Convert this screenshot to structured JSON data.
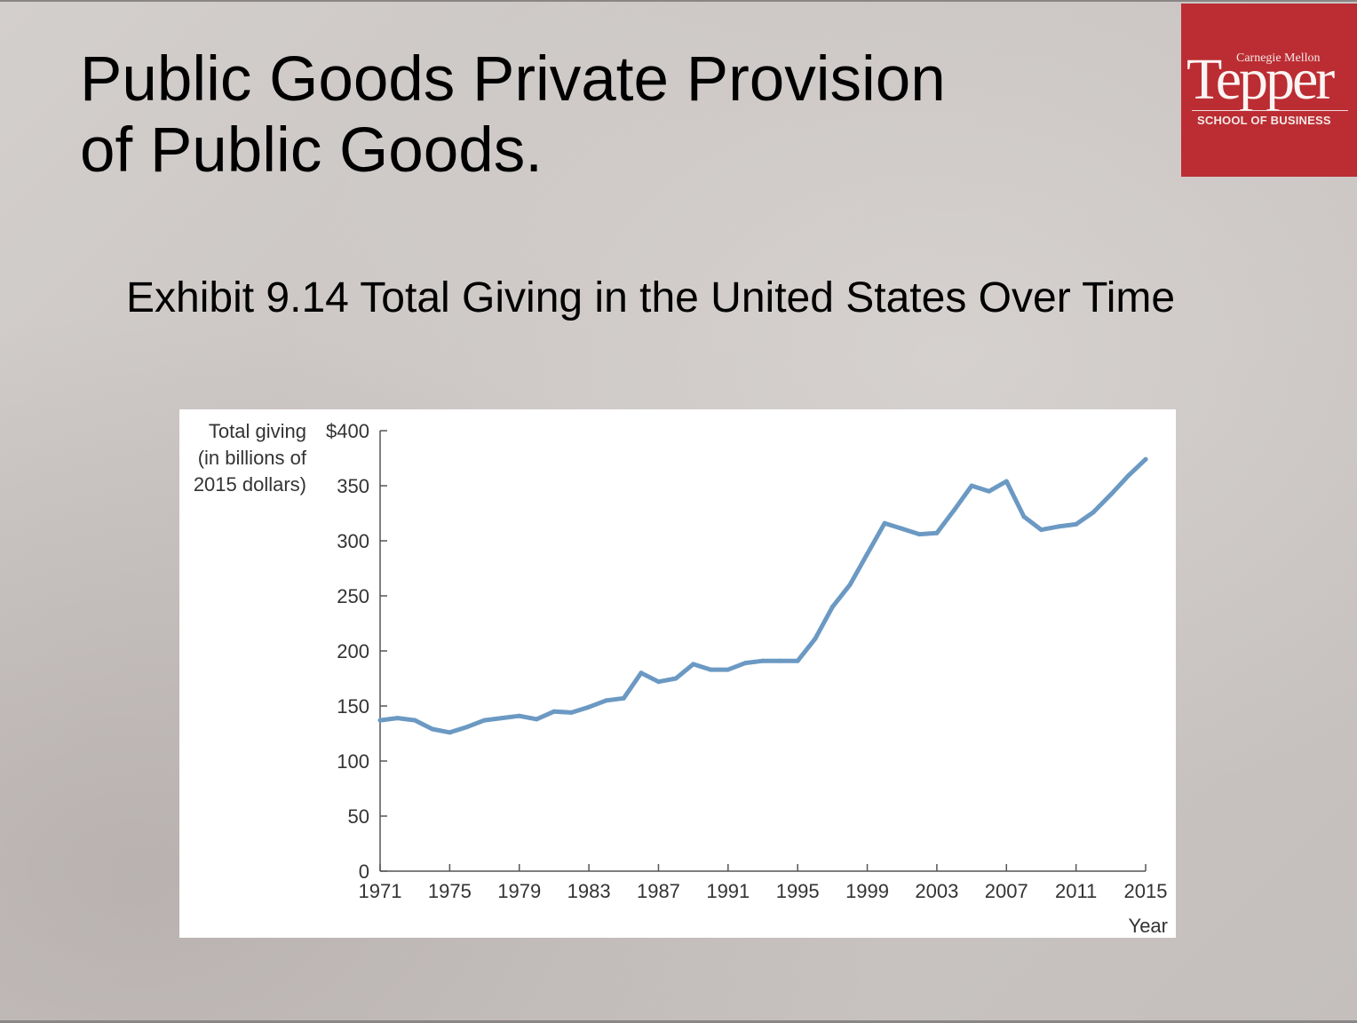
{
  "slide": {
    "title_line1": "Public Goods Private Provision",
    "title_line2": "of Public Goods.",
    "exhibit_title": "Exhibit 9.14 Total Giving in the United States Over Time"
  },
  "logo": {
    "top_text": "Carnegie Mellon",
    "name": "Tepper",
    "subtitle": "SCHOOL OF BUSINESS",
    "color": "#bb2d32"
  },
  "colors": {
    "line": "#6b99c3",
    "axis": "#555555",
    "text": "#333333"
  },
  "chart_data": {
    "type": "line",
    "title": "",
    "ylabel_lines": [
      "Total giving",
      "(in billions of",
      "2015 dollars)"
    ],
    "xlabel": "Year",
    "ylim": [
      0,
      400
    ],
    "xlim": [
      1971,
      2015
    ],
    "yticks": [
      0,
      50,
      100,
      150,
      200,
      250,
      300,
      350,
      400
    ],
    "ytick_labels": [
      "0",
      "50",
      "100",
      "150",
      "200",
      "250",
      "300",
      "350",
      "$400"
    ],
    "xticks": [
      1971,
      1975,
      1979,
      1983,
      1987,
      1991,
      1995,
      1999,
      2003,
      2007,
      2011,
      2015
    ],
    "xtick_labels": [
      "1971",
      "1975",
      "1979",
      "1983",
      "1987",
      "1991",
      "1995",
      "1999",
      "2003",
      "2007",
      "2011",
      "2015"
    ],
    "grid": false,
    "legend": "none",
    "series": [
      {
        "x": [
          1971,
          1972,
          1973,
          1974,
          1975,
          1976,
          1977,
          1978,
          1979,
          1980,
          1981,
          1982,
          1983,
          1984,
          1985,
          1986,
          1987,
          1988,
          1989,
          1990,
          1991,
          1992,
          1993,
          1994,
          1995,
          1996,
          1997,
          1998,
          1999,
          2000,
          2001,
          2002,
          2003,
          2004,
          2005,
          2006,
          2007,
          2008,
          2009,
          2010,
          2011,
          2012,
          2013,
          2014,
          2015
        ],
        "values": [
          137,
          139,
          137,
          129,
          126,
          131,
          137,
          139,
          141,
          138,
          145,
          144,
          149,
          155,
          157,
          180,
          172,
          175,
          188,
          183,
          183,
          189,
          191,
          191,
          191,
          211,
          240,
          260,
          288,
          316,
          311,
          306,
          307,
          328,
          350,
          345,
          354,
          322,
          310,
          313,
          315,
          326,
          342,
          359,
          374
        ]
      }
    ]
  }
}
